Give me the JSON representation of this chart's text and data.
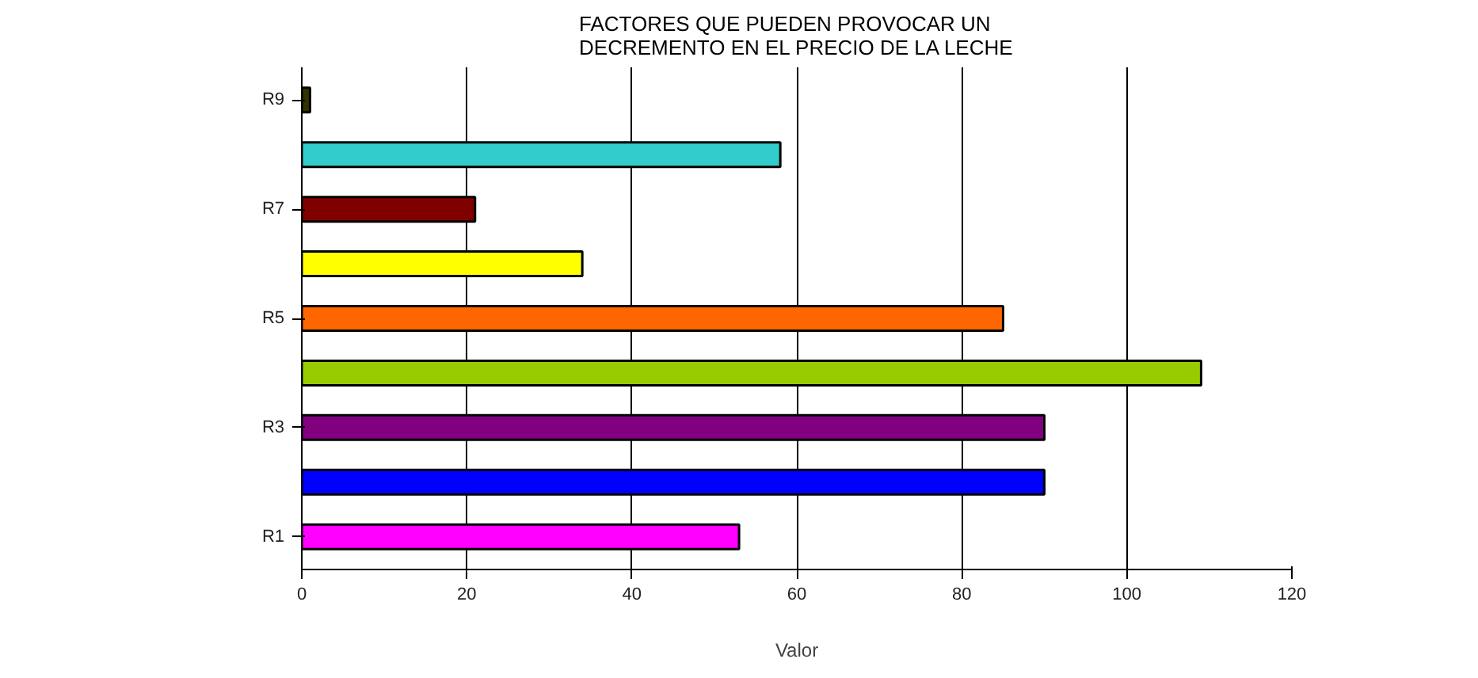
{
  "chart_data": {
    "type": "bar",
    "orientation": "horizontal",
    "title": "FACTORES QUE PUEDEN PROVOCAR UN\nDECREMENTO EN EL PRECIO DE LA LECHE",
    "xlabel": "Valor",
    "categories": [
      "R9",
      null,
      "R7",
      null,
      "R5",
      null,
      "R3",
      null,
      "R1"
    ],
    "values": [
      1,
      58,
      21,
      34,
      85,
      109,
      90,
      90,
      53
    ],
    "colors": [
      "#333300",
      "#33cccc",
      "#800000",
      "#ffff00",
      "#ff6600",
      "#99cc00",
      "#800080",
      "#0000ff",
      "#ff00ff"
    ],
    "xlim": [
      0,
      120
    ],
    "xticks": [
      0,
      20,
      40,
      60,
      80,
      100,
      120
    ],
    "grid": "x"
  }
}
